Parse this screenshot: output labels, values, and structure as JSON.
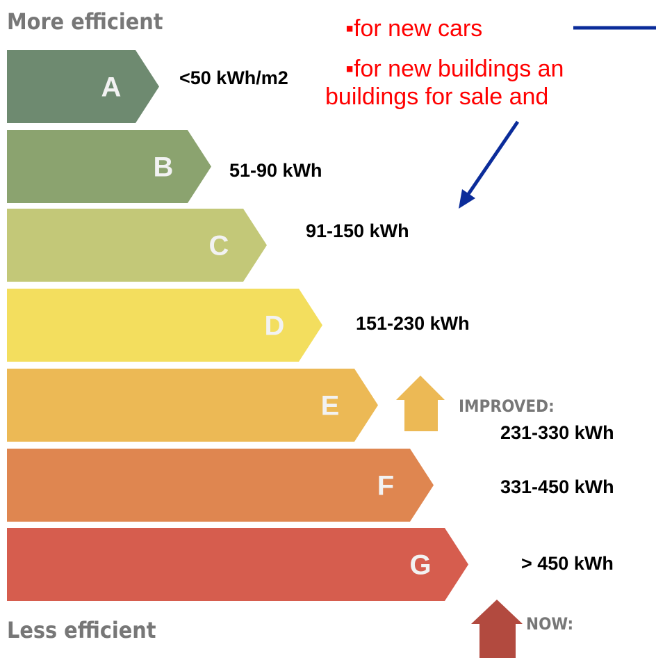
{
  "header": {
    "top": "More efficient",
    "bottom": "Less efficient"
  },
  "notes": [
    "▪for new cars",
    "▪for new buildings an",
    "buildings for sale and"
  ],
  "bands": [
    {
      "letter": "A",
      "range": "<50 kWh/m2",
      "color": "#6e8a70"
    },
    {
      "letter": "B",
      "range": "51-90 kWh",
      "color": "#8ba36f"
    },
    {
      "letter": "C",
      "range": "91-150 kWh",
      "color": "#c3c878"
    },
    {
      "letter": "D",
      "range": "151-230 kWh",
      "color": "#f3de5e"
    },
    {
      "letter": "E",
      "range": "231-330 kWh",
      "color": "#ecb955"
    },
    {
      "letter": "F",
      "range": "331-450 kWh",
      "color": "#df8650"
    },
    {
      "letter": "G",
      "range": "> 450 kWh",
      "color": "#d65d4e"
    }
  ],
  "markers": {
    "improved": "IMPROVED:",
    "now": "NOW:"
  }
}
